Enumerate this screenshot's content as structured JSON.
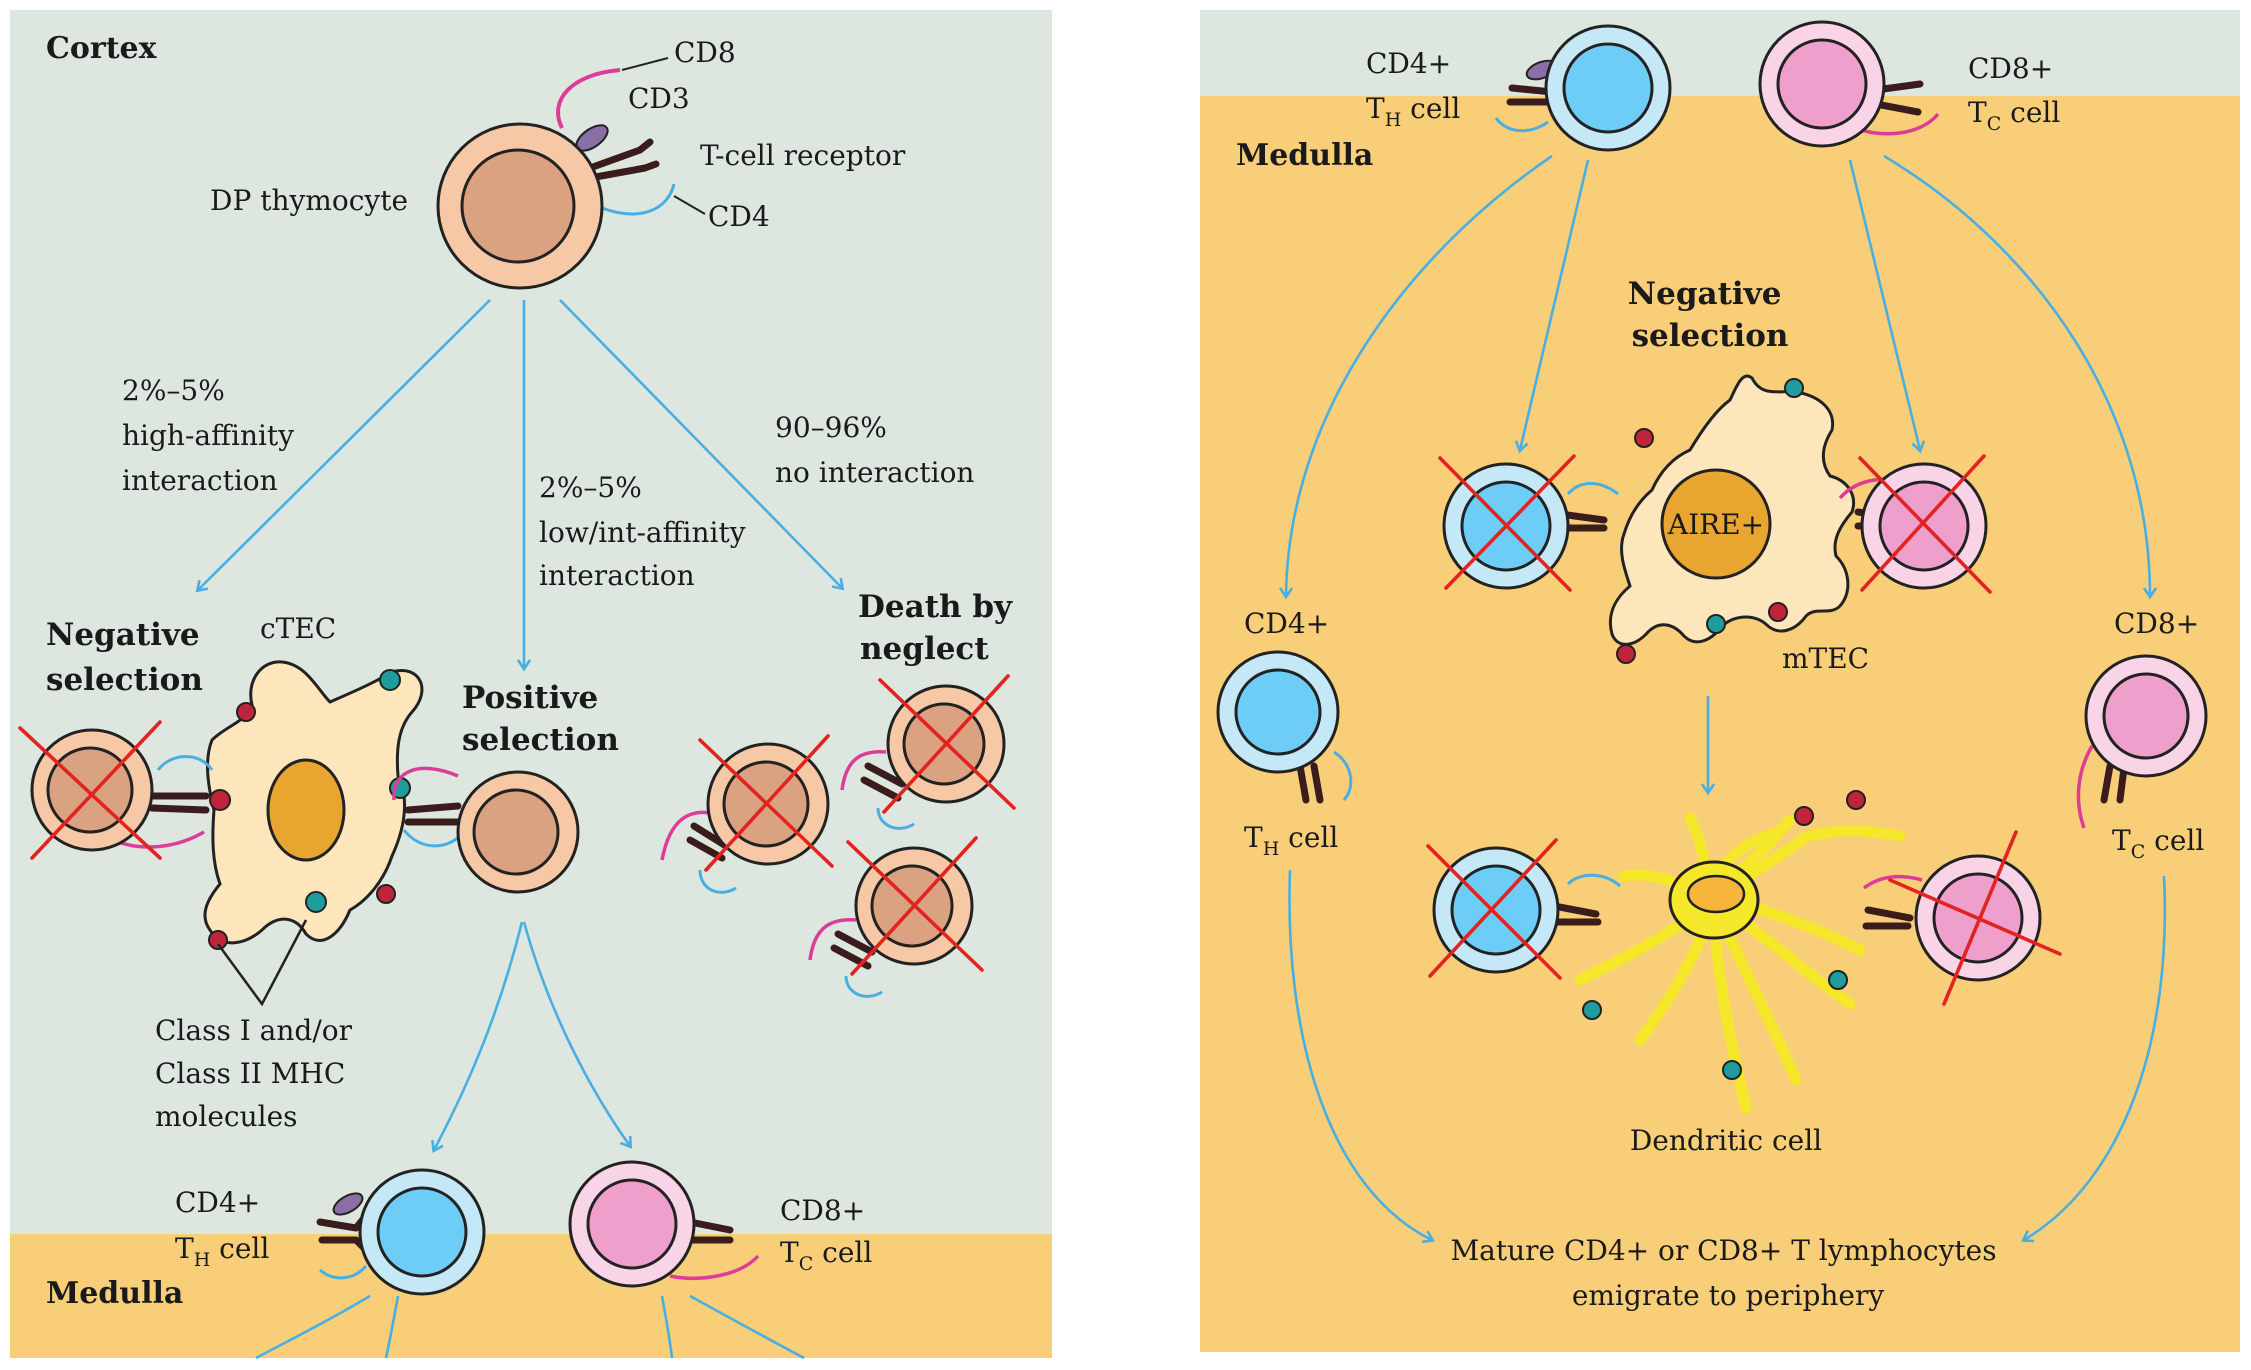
{
  "colors": {
    "cortex_bg": "#dde7df",
    "medulla_bg": "#f8ce78",
    "dp_outer": "#f6c8a5",
    "dp_inner": "#dba282",
    "cd4_outer": "#c5e8f7",
    "cd4_inner": "#6ecdf6",
    "cd8_outer": "#f9d4e6",
    "cd8_inner": "#ef9fcb",
    "ctec_fill": "#fde6bb",
    "ctec_nucleus": "#e8a530",
    "dendritic_fill": "#f5e729",
    "arrow": "#49afe3",
    "cross": "#e2231f",
    "cd8_coreceptor": "#dd3d98",
    "cd4_coreceptor": "#49afe3"
  },
  "left_panel": {
    "cortex_label": "Cortex",
    "medulla_label": "Medulla",
    "dp_thymocyte": {
      "label": "DP thymocyte",
      "cd8": "CD8",
      "cd3": "CD3",
      "tcr": "T-cell receptor",
      "cd4": "CD4"
    },
    "branches": {
      "high_affinity": [
        "2%–5%",
        "high-affinity",
        "interaction"
      ],
      "low_affinity": [
        "2%–5%",
        "low/int-affinity",
        "interaction"
      ],
      "no_interaction": [
        "90–96%",
        "no interaction"
      ]
    },
    "negative_selection": [
      "Negative",
      "selection"
    ],
    "ctec": "cTEC",
    "positive_selection": [
      "Positive",
      "selection"
    ],
    "death_by_neglect": [
      "Death by",
      "neglect"
    ],
    "mhc_label": [
      "Class I and/or",
      "Class II MHC",
      "molecules"
    ],
    "cd4_cell": {
      "top": "CD4+",
      "main": "T",
      "subscript": "H",
      "suffix": " cell"
    },
    "cd8_cell": {
      "top": "CD8+",
      "main": "T",
      "subscript": "C",
      "suffix": " cell"
    }
  },
  "right_panel": {
    "medulla_label": "Medulla",
    "cd4_top": {
      "top": "CD4+",
      "main": "T",
      "subscript": "H",
      "suffix": " cell"
    },
    "cd8_top": {
      "top": "CD8+",
      "main": "T",
      "subscript": "C",
      "suffix": " cell"
    },
    "negative_selection": [
      "Negative",
      "selection"
    ],
    "aire": "AIRE+",
    "mtec": "mTEC",
    "dendritic_cell": "Dendritic cell",
    "cd4_side": {
      "top": "CD4+",
      "main": "T",
      "subscript": "H",
      "suffix": " cell"
    },
    "cd8_side": {
      "top": "CD8+",
      "main": "T",
      "subscript": "C",
      "suffix": " cell"
    },
    "mature": [
      "Mature CD4+ or CD8+ T lymphocytes",
      "emigrate to periphery"
    ]
  }
}
